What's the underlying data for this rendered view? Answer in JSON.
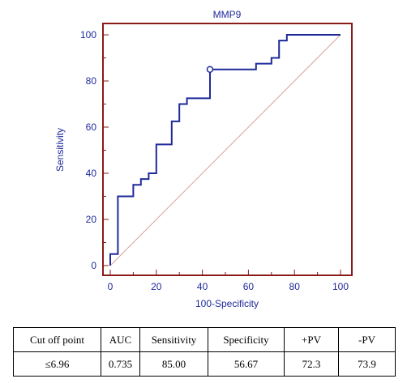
{
  "chart_data": {
    "type": "line",
    "title": "MMP9",
    "xlabel": "100-Specificity",
    "ylabel": "Sensitivity",
    "xlim": [
      0,
      100
    ],
    "ylim": [
      0,
      100
    ],
    "xticks": [
      0,
      20,
      40,
      60,
      80,
      100
    ],
    "yticks": [
      0,
      20,
      40,
      60,
      80,
      100
    ],
    "grid": false,
    "colors": {
      "frame": "#8b1a1a",
      "curve": "#1f2a9a",
      "reference": "#d9a0a0",
      "text": "#1f2a9a"
    },
    "series": [
      {
        "x": [
          0,
          0,
          3.3,
          3.3,
          10,
          10,
          13.3,
          13.3,
          16.7,
          16.7,
          20,
          20,
          26.7,
          26.7,
          30,
          30,
          33.3,
          33.3,
          43.3,
          43.3,
          63.3,
          63.3,
          70,
          70,
          73.3,
          73.3,
          76.7,
          76.7,
          100
        ],
        "y": [
          0,
          5,
          5,
          30,
          30,
          35,
          35,
          37.5,
          37.5,
          40,
          40,
          52.5,
          52.5,
          62.5,
          62.5,
          70,
          70,
          72.5,
          72.5,
          85,
          85,
          87.5,
          87.5,
          90,
          90,
          97.5,
          97.5,
          100,
          100
        ]
      }
    ],
    "reference_line": {
      "x": [
        0,
        100
      ],
      "y": [
        0,
        100
      ]
    },
    "marker": {
      "x": 43.3,
      "y": 85
    }
  },
  "table": {
    "headers": [
      "Cut off point",
      "AUC",
      "Sensitivity",
      "Specificity",
      "+PV",
      "-PV"
    ],
    "rows": [
      [
        "≤6.96",
        "0.735",
        "85.00",
        "56.67",
        "72.3",
        "73.9"
      ]
    ]
  }
}
